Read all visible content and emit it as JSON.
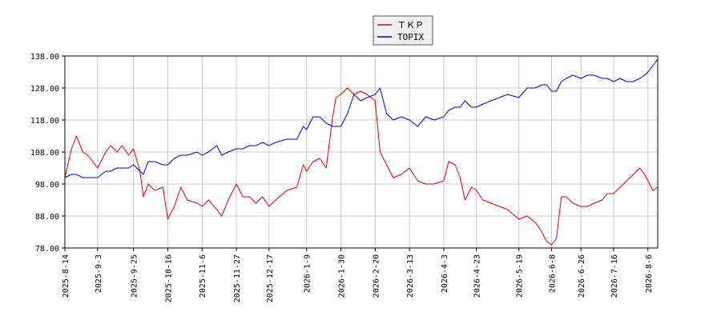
{
  "chart_data": {
    "type": "line",
    "title": "",
    "xlabel": "",
    "ylabel": "",
    "ylim": [
      78,
      138
    ],
    "yticks": [
      "138.00",
      "128.00",
      "118.00",
      "108.00",
      "98.00",
      "88.00",
      "78.00"
    ],
    "xticks": [
      "2025-8-14",
      "2025-9-3",
      "2025-9-25",
      "2025-10-16",
      "2025-11-6",
      "2025-11-27",
      "2025-12-17",
      "2026-1-9",
      "2026-1-30",
      "2026-2-20",
      "2026-3-13",
      "2026-4-3",
      "2026-4-23",
      "2026-5-19",
      "2026-6-8",
      "2026-6-26",
      "2026-7-16",
      "2026-8-6"
    ],
    "grid": true,
    "legend_position": "top-center",
    "series": [
      {
        "name": "ＴＫＰ",
        "color": "#dd0000",
        "points": [
          [
            "2025-8-14",
            100
          ],
          [
            "2025-8-18",
            109
          ],
          [
            "2025-8-21",
            113
          ],
          [
            "2025-8-25",
            108
          ],
          [
            "2025-8-28",
            107
          ],
          [
            "2025-9-3",
            103
          ],
          [
            "2025-9-8",
            108
          ],
          [
            "2025-9-11",
            110
          ],
          [
            "2025-9-15",
            108
          ],
          [
            "2025-9-18",
            110
          ],
          [
            "2025-9-22",
            107
          ],
          [
            "2025-9-25",
            109
          ],
          [
            "2025-9-29",
            102
          ],
          [
            "2025-10-1",
            94
          ],
          [
            "2025-10-4",
            98
          ],
          [
            "2025-10-8",
            96
          ],
          [
            "2025-10-13",
            97
          ],
          [
            "2025-10-16",
            87
          ],
          [
            "2025-10-20",
            91
          ],
          [
            "2025-10-24",
            97
          ],
          [
            "2025-10-28",
            93
          ],
          [
            "2025-11-3",
            92
          ],
          [
            "2025-11-6",
            91
          ],
          [
            "2025-11-10",
            93
          ],
          [
            "2025-11-15",
            90
          ],
          [
            "2025-11-18",
            88
          ],
          [
            "2025-11-22",
            93
          ],
          [
            "2025-11-27",
            98
          ],
          [
            "2025-12-1",
            94
          ],
          [
            "2025-12-5",
            94
          ],
          [
            "2025-12-9",
            92
          ],
          [
            "2025-12-13",
            94
          ],
          [
            "2025-12-17",
            91
          ],
          [
            "2025-12-21",
            93
          ],
          [
            "2025-12-28",
            96
          ],
          [
            "2026-1-3",
            97
          ],
          [
            "2026-1-7",
            104
          ],
          [
            "2026-1-9",
            102
          ],
          [
            "2026-1-13",
            105
          ],
          [
            "2026-1-17",
            106
          ],
          [
            "2026-1-21",
            103
          ],
          [
            "2026-1-25",
            119
          ],
          [
            "2026-1-27",
            125
          ],
          [
            "2026-1-30",
            126
          ],
          [
            "2026-2-3",
            128
          ],
          [
            "2026-2-7",
            126
          ],
          [
            "2026-2-11",
            127
          ],
          [
            "2026-2-15",
            126
          ],
          [
            "2026-2-20",
            124
          ],
          [
            "2026-2-23",
            108
          ],
          [
            "2026-2-27",
            104
          ],
          [
            "2026-3-3",
            100
          ],
          [
            "2026-3-8",
            101
          ],
          [
            "2026-3-13",
            103
          ],
          [
            "2026-3-18",
            99
          ],
          [
            "2026-3-23",
            98
          ],
          [
            "2026-3-28",
            98
          ],
          [
            "2026-4-3",
            99
          ],
          [
            "2026-4-6",
            105
          ],
          [
            "2026-4-10",
            104
          ],
          [
            "2026-4-13",
            100
          ],
          [
            "2026-4-16",
            93
          ],
          [
            "2026-4-20",
            97
          ],
          [
            "2026-4-23",
            96
          ],
          [
            "2026-4-27",
            93
          ],
          [
            "2026-5-2",
            92
          ],
          [
            "2026-5-7",
            91
          ],
          [
            "2026-5-12",
            90
          ],
          [
            "2026-5-19",
            87
          ],
          [
            "2026-5-24",
            88
          ],
          [
            "2026-5-29",
            86
          ],
          [
            "2026-6-2",
            83
          ],
          [
            "2026-6-5",
            80
          ],
          [
            "2026-6-8",
            79
          ],
          [
            "2026-6-11",
            81
          ],
          [
            "2026-6-14",
            94
          ],
          [
            "2026-6-17",
            94
          ],
          [
            "2026-6-21",
            92
          ],
          [
            "2026-6-26",
            91
          ],
          [
            "2026-6-30",
            91
          ],
          [
            "2026-7-4",
            92
          ],
          [
            "2026-7-9",
            93
          ],
          [
            "2026-7-12",
            95
          ],
          [
            "2026-7-16",
            95
          ],
          [
            "2026-7-20",
            97
          ],
          [
            "2026-7-24",
            99
          ],
          [
            "2026-7-28",
            101
          ],
          [
            "2026-8-1",
            103
          ],
          [
            "2026-8-4",
            101
          ],
          [
            "2026-8-6",
            99
          ],
          [
            "2026-8-9",
            96
          ],
          [
            "2026-8-12",
            97
          ]
        ]
      },
      {
        "name": "TOPIX",
        "color": "#0000cc",
        "points": [
          [
            "2025-8-14",
            100
          ],
          [
            "2025-8-18",
            101
          ],
          [
            "2025-8-21",
            101
          ],
          [
            "2025-8-25",
            100
          ],
          [
            "2025-8-28",
            100
          ],
          [
            "2025-9-3",
            100
          ],
          [
            "2025-9-8",
            102
          ],
          [
            "2025-9-11",
            102
          ],
          [
            "2025-9-15",
            103
          ],
          [
            "2025-9-18",
            103
          ],
          [
            "2025-9-22",
            103
          ],
          [
            "2025-9-25",
            104
          ],
          [
            "2025-9-29",
            102
          ],
          [
            "2025-10-1",
            101
          ],
          [
            "2025-10-4",
            105
          ],
          [
            "2025-10-8",
            105
          ],
          [
            "2025-10-13",
            104
          ],
          [
            "2025-10-16",
            104
          ],
          [
            "2025-10-20",
            106
          ],
          [
            "2025-10-24",
            107
          ],
          [
            "2025-10-28",
            107
          ],
          [
            "2025-11-3",
            108
          ],
          [
            "2025-11-6",
            107
          ],
          [
            "2025-11-10",
            108
          ],
          [
            "2025-11-15",
            110
          ],
          [
            "2025-11-18",
            107
          ],
          [
            "2025-11-22",
            108
          ],
          [
            "2025-11-27",
            109
          ],
          [
            "2025-12-1",
            109
          ],
          [
            "2025-12-5",
            110
          ],
          [
            "2025-12-9",
            110
          ],
          [
            "2025-12-13",
            111
          ],
          [
            "2025-12-17",
            110
          ],
          [
            "2025-12-21",
            111
          ],
          [
            "2025-12-28",
            112
          ],
          [
            "2026-1-3",
            112
          ],
          [
            "2026-1-7",
            116
          ],
          [
            "2026-1-9",
            115
          ],
          [
            "2026-1-13",
            119
          ],
          [
            "2026-1-17",
            119
          ],
          [
            "2026-1-21",
            117
          ],
          [
            "2026-1-25",
            116
          ],
          [
            "2026-1-27",
            116
          ],
          [
            "2026-1-30",
            116
          ],
          [
            "2026-2-3",
            120
          ],
          [
            "2026-2-7",
            126
          ],
          [
            "2026-2-11",
            124
          ],
          [
            "2026-2-15",
            125
          ],
          [
            "2026-2-20",
            126
          ],
          [
            "2026-2-23",
            128
          ],
          [
            "2026-2-27",
            120
          ],
          [
            "2026-3-3",
            118
          ],
          [
            "2026-3-8",
            119
          ],
          [
            "2026-3-13",
            118
          ],
          [
            "2026-3-18",
            116
          ],
          [
            "2026-3-23",
            119
          ],
          [
            "2026-3-28",
            118
          ],
          [
            "2026-4-3",
            119
          ],
          [
            "2026-4-6",
            121
          ],
          [
            "2026-4-10",
            122
          ],
          [
            "2026-4-13",
            122
          ],
          [
            "2026-4-16",
            124
          ],
          [
            "2026-4-20",
            122
          ],
          [
            "2026-4-23",
            122
          ],
          [
            "2026-4-27",
            123
          ],
          [
            "2026-5-2",
            124
          ],
          [
            "2026-5-7",
            125
          ],
          [
            "2026-5-12",
            126
          ],
          [
            "2026-5-19",
            125
          ],
          [
            "2026-5-24",
            128
          ],
          [
            "2026-5-29",
            128
          ],
          [
            "2026-6-2",
            129
          ],
          [
            "2026-6-5",
            129
          ],
          [
            "2026-6-8",
            127
          ],
          [
            "2026-6-11",
            127
          ],
          [
            "2026-6-14",
            130
          ],
          [
            "2026-6-17",
            131
          ],
          [
            "2026-6-21",
            132
          ],
          [
            "2026-6-26",
            131
          ],
          [
            "2026-6-30",
            132
          ],
          [
            "2026-7-4",
            132
          ],
          [
            "2026-7-9",
            131
          ],
          [
            "2026-7-12",
            131
          ],
          [
            "2026-7-16",
            130
          ],
          [
            "2026-7-20",
            131
          ],
          [
            "2026-7-24",
            130
          ],
          [
            "2026-7-28",
            130
          ],
          [
            "2026-8-1",
            131
          ],
          [
            "2026-8-4",
            132
          ],
          [
            "2026-8-6",
            133
          ],
          [
            "2026-8-9",
            135
          ],
          [
            "2026-8-12",
            137
          ]
        ]
      }
    ]
  }
}
